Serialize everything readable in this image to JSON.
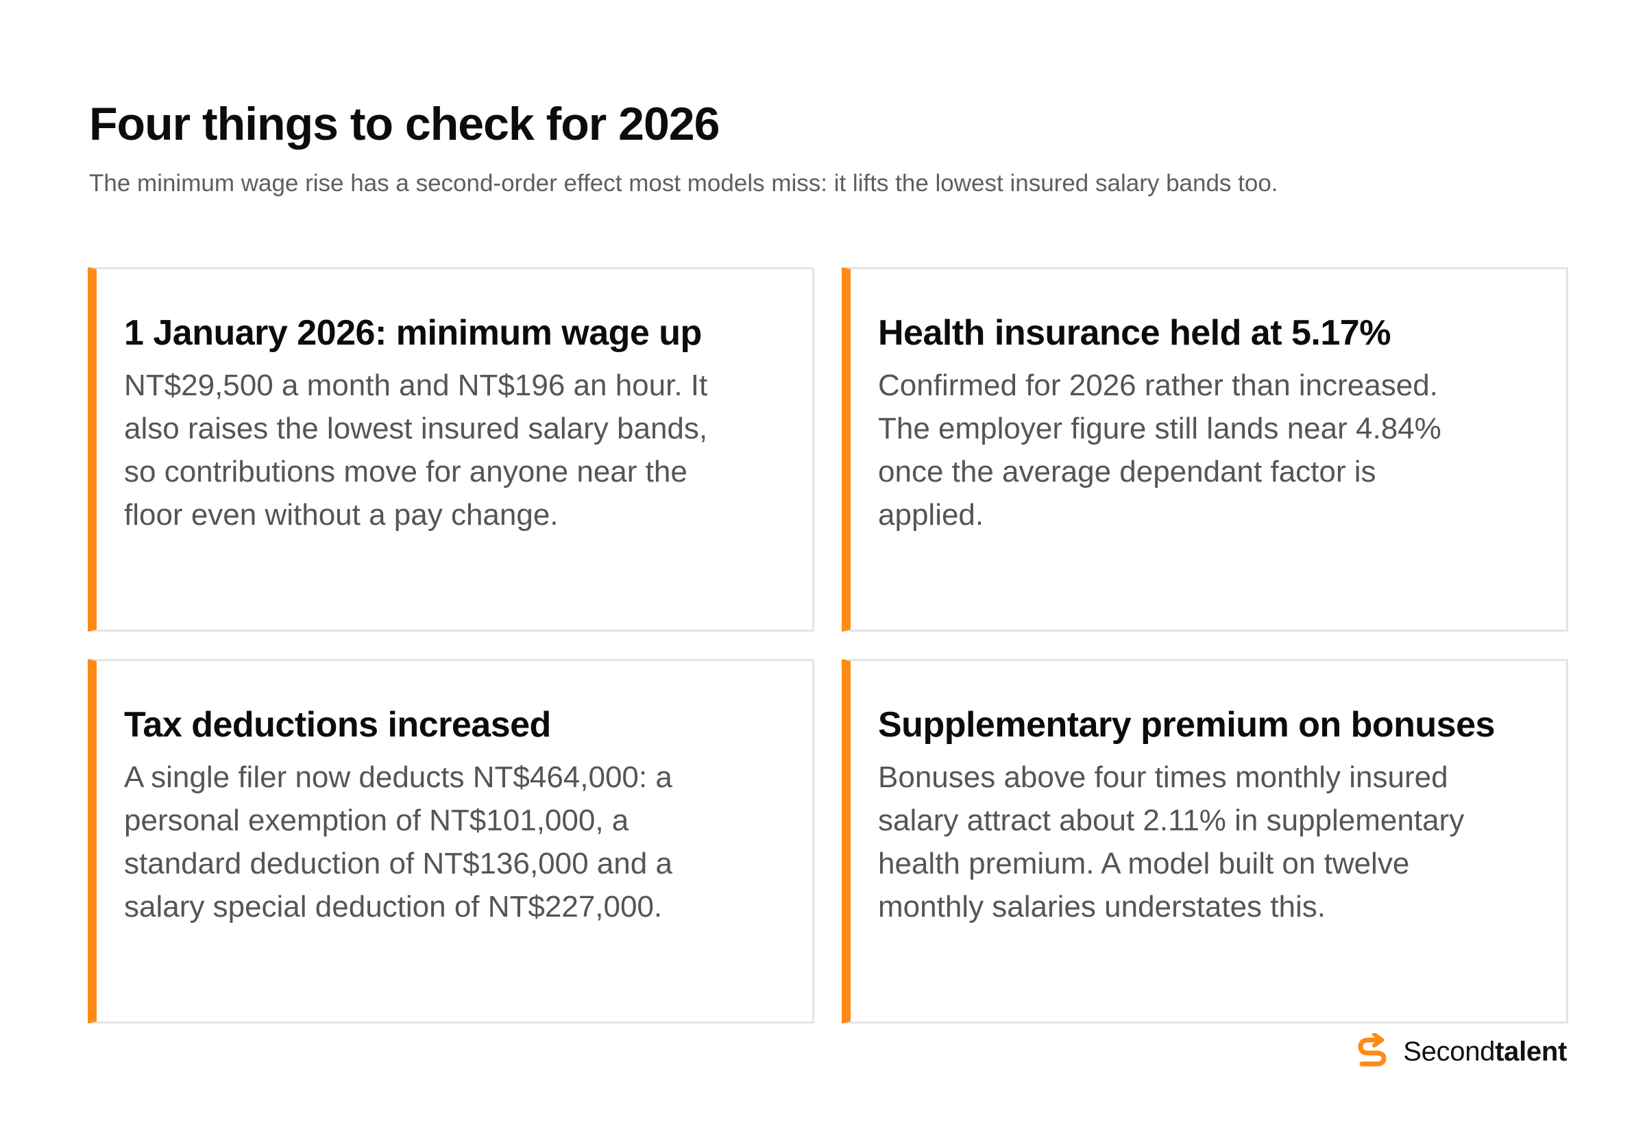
{
  "header": {
    "title": "Four things to check for 2026",
    "subtitle": "The minimum wage rise has a second-order effect most models miss: it lifts the lowest insured salary bands too."
  },
  "cards": [
    {
      "title": "1 January 2026: minimum wage up",
      "body": "NT$29,500 a month and NT$196 an hour. It also raises the lowest insured salary bands, so contributions move for anyone near the floor even without a pay change."
    },
    {
      "title": "Health insurance held at 5.17%",
      "body": "Confirmed for 2026 rather than increased. The employer figure still lands near 4.84% once the average dependant factor is applied."
    },
    {
      "title": "Tax deductions increased",
      "body": "A single filer now deducts NT$464,000: a personal exemption of NT$101,000, a standard deduction of NT$136,000 and a salary special deduction of NT$227,000."
    },
    {
      "title": "Supplementary premium on bonuses",
      "body": "Bonuses above four times monthly insured salary attract about 2.11% in supplementary health premium. A model built on twelve monthly salaries understates this."
    }
  ],
  "brand": {
    "name_regular": "Second",
    "name_bold": "talent",
    "icon": "secondtalent-logo-icon"
  },
  "colors": {
    "accent": "#ff8a14",
    "card_border": "#e4e4e4",
    "title_text": "#0c0c0c",
    "body_text": "#555555",
    "subtitle_text": "#5e5e5e"
  }
}
